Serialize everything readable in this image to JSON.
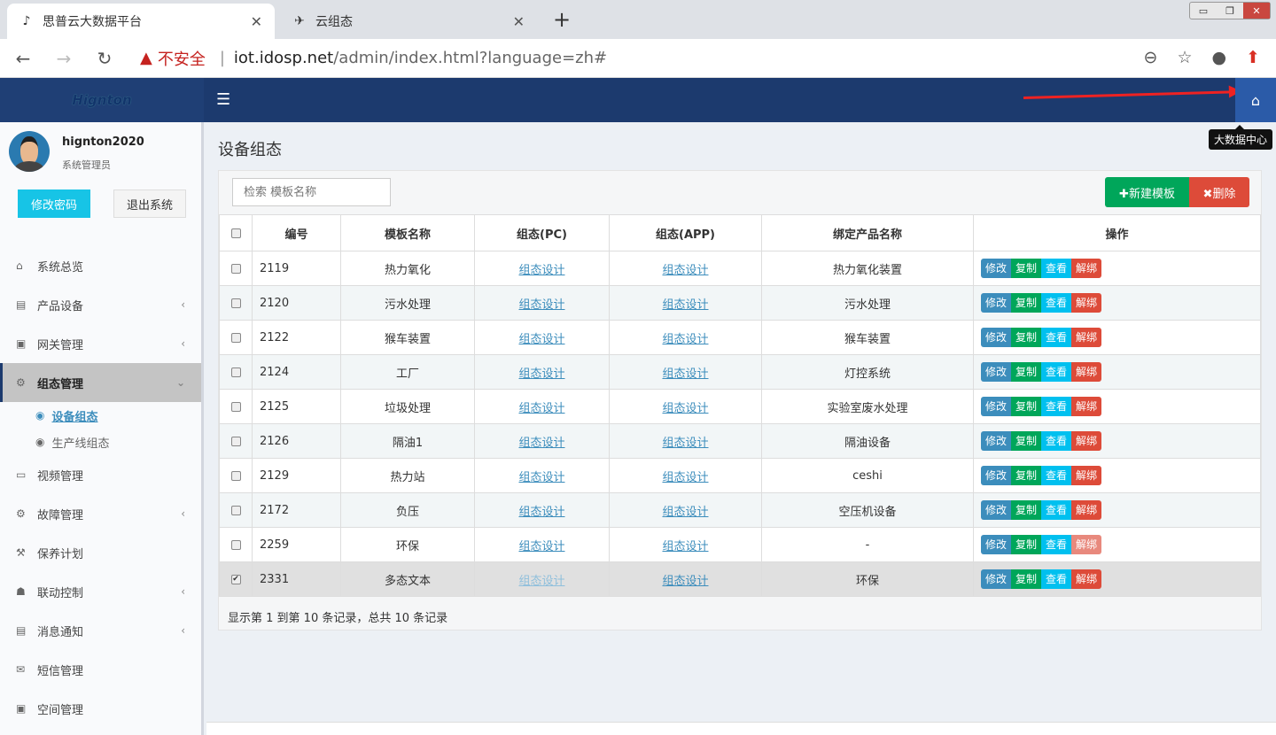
{
  "browser": {
    "tabs": [
      {
        "title": "思普云大数据平台",
        "active": true
      },
      {
        "title": "云组态",
        "active": false
      }
    ],
    "security_label": "不安全",
    "url_host": "iot.idosp.net",
    "url_path": "/admin/index.html?language=zh#"
  },
  "header": {
    "logo": "Hignton",
    "home_tooltip": "大数据中心"
  },
  "user": {
    "name": "hignton2020",
    "role": "系统管理员",
    "change_password": "修改密码",
    "logout": "退出系统"
  },
  "sidebar": {
    "items": [
      {
        "label": "系统总览",
        "icon": "home-icon",
        "chevron": false
      },
      {
        "label": "产品设备",
        "icon": "book-icon",
        "chevron": true
      },
      {
        "label": "网关管理",
        "icon": "gateway-icon",
        "chevron": true
      },
      {
        "label": "组态管理",
        "icon": "cogs-icon",
        "chevron": true,
        "active": true,
        "children": [
          {
            "label": "设备组态",
            "active": true
          },
          {
            "label": "生产线组态"
          }
        ]
      },
      {
        "label": "视频管理",
        "icon": "monitor-icon",
        "chevron": false
      },
      {
        "label": "故障管理",
        "icon": "cogs-icon",
        "chevron": true
      },
      {
        "label": "保养计划",
        "icon": "wrench-icon",
        "chevron": false
      },
      {
        "label": "联动控制",
        "icon": "sitemap-icon",
        "chevron": true
      },
      {
        "label": "消息通知",
        "icon": "book-icon",
        "chevron": true
      },
      {
        "label": "短信管理",
        "icon": "envelope-icon",
        "chevron": false
      },
      {
        "label": "空间管理",
        "icon": "gateway-icon",
        "chevron": false
      }
    ]
  },
  "main": {
    "title": "设备组态",
    "search_placeholder": "检索 模板名称",
    "new_button": "✚新建模板",
    "delete_button": "✖删除",
    "columns": [
      "编号",
      "模板名称",
      "组态(PC)",
      "组态(APP)",
      "绑定产品名称",
      "操作"
    ],
    "link_text": "组态设计",
    "actions": [
      "修改",
      "复制",
      "查看",
      "解绑"
    ],
    "rows": [
      {
        "id": "2119",
        "name": "热力氧化",
        "product": "热力氧化装置"
      },
      {
        "id": "2120",
        "name": "污水处理",
        "product": "污水处理"
      },
      {
        "id": "2122",
        "name": "猴车装置",
        "product": "猴车装置"
      },
      {
        "id": "2124",
        "name": "工厂",
        "product": "灯控系统"
      },
      {
        "id": "2125",
        "name": "垃圾处理",
        "product": "实验室废水处理"
      },
      {
        "id": "2126",
        "name": "隔油1",
        "product": "隔油设备"
      },
      {
        "id": "2129",
        "name": "热力站",
        "product": "ceshi"
      },
      {
        "id": "2172",
        "name": "负压",
        "product": "空压机设备"
      },
      {
        "id": "2259",
        "name": "环保",
        "product": "-",
        "unbind_disabled": true
      },
      {
        "id": "2331",
        "name": "多态文本",
        "product": "环保",
        "checked": true
      }
    ],
    "pagination_info": "显示第 1 到第 10 条记录，总共 10 条记录"
  }
}
